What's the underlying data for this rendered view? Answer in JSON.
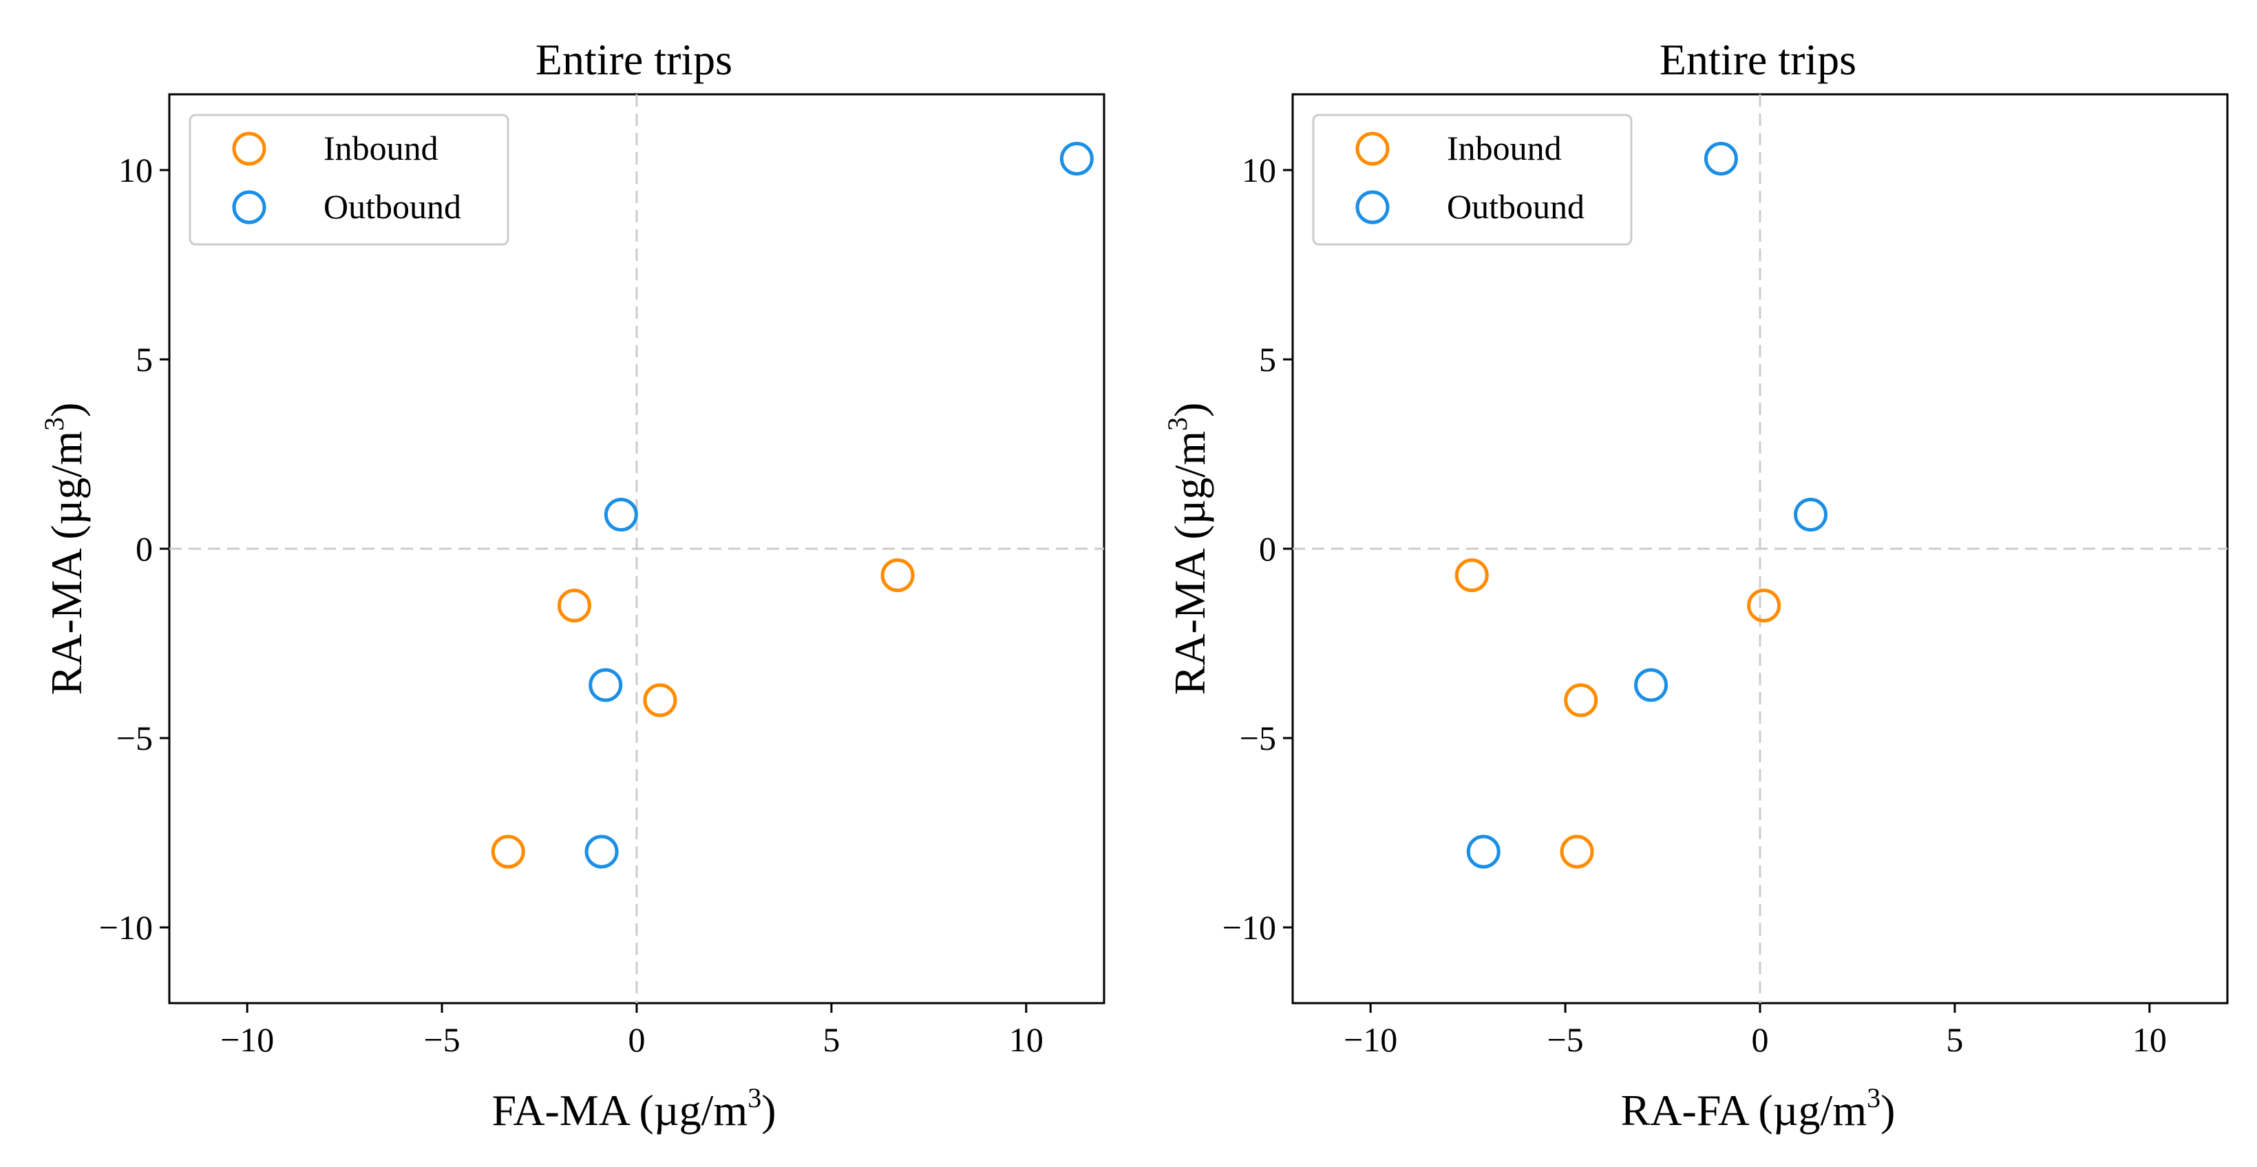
{
  "chart_data": [
    {
      "type": "scatter",
      "title": "Entire trips",
      "xlabel": "FA-MA (µg/m",
      "xlabel_sup": "3",
      "xlabel_end": ")",
      "ylabel": "RA-MA (µg/m",
      "ylabel_sup": "3",
      "ylabel_end": ")",
      "xlim": [
        -12,
        12
      ],
      "ylim": [
        -12,
        12
      ],
      "xticks": [
        -10,
        -5,
        0,
        5,
        10
      ],
      "yticks": [
        -10,
        -5,
        0,
        5,
        10
      ],
      "legend_position": "top-left",
      "series": [
        {
          "name": "Inbound",
          "color": "#ff8c00",
          "points": [
            [
              -3.3,
              -8.0
            ],
            [
              -1.6,
              -1.5
            ],
            [
              0.6,
              -4.0
            ],
            [
              6.7,
              -0.7
            ]
          ]
        },
        {
          "name": "Outbound",
          "color": "#1b8fe6",
          "points": [
            [
              -0.4,
              0.9
            ],
            [
              -0.8,
              -3.6
            ],
            [
              -0.9,
              -8.0
            ],
            [
              11.3,
              10.3
            ]
          ]
        }
      ]
    },
    {
      "type": "scatter",
      "title": "Entire trips",
      "xlabel": "RA-FA (µg/m",
      "xlabel_sup": "3",
      "xlabel_end": ")",
      "ylabel": "RA-MA (µg/m",
      "ylabel_sup": "3",
      "ylabel_end": ")",
      "xlim": [
        -12,
        12
      ],
      "ylim": [
        -12,
        12
      ],
      "xticks": [
        -10,
        -5,
        0,
        5,
        10
      ],
      "yticks": [
        -10,
        -5,
        0,
        5,
        10
      ],
      "legend_position": "top-left",
      "series": [
        {
          "name": "Inbound",
          "color": "#ff8c00",
          "points": [
            [
              -7.4,
              -0.7
            ],
            [
              0.1,
              -1.5
            ],
            [
              -4.6,
              -4.0
            ],
            [
              -4.7,
              -8.0
            ]
          ]
        },
        {
          "name": "Outbound",
          "color": "#1b8fe6",
          "points": [
            [
              -1.0,
              10.3
            ],
            [
              1.3,
              0.9
            ],
            [
              -2.8,
              -3.6
            ],
            [
              -7.1,
              -8.0
            ]
          ]
        }
      ]
    }
  ]
}
